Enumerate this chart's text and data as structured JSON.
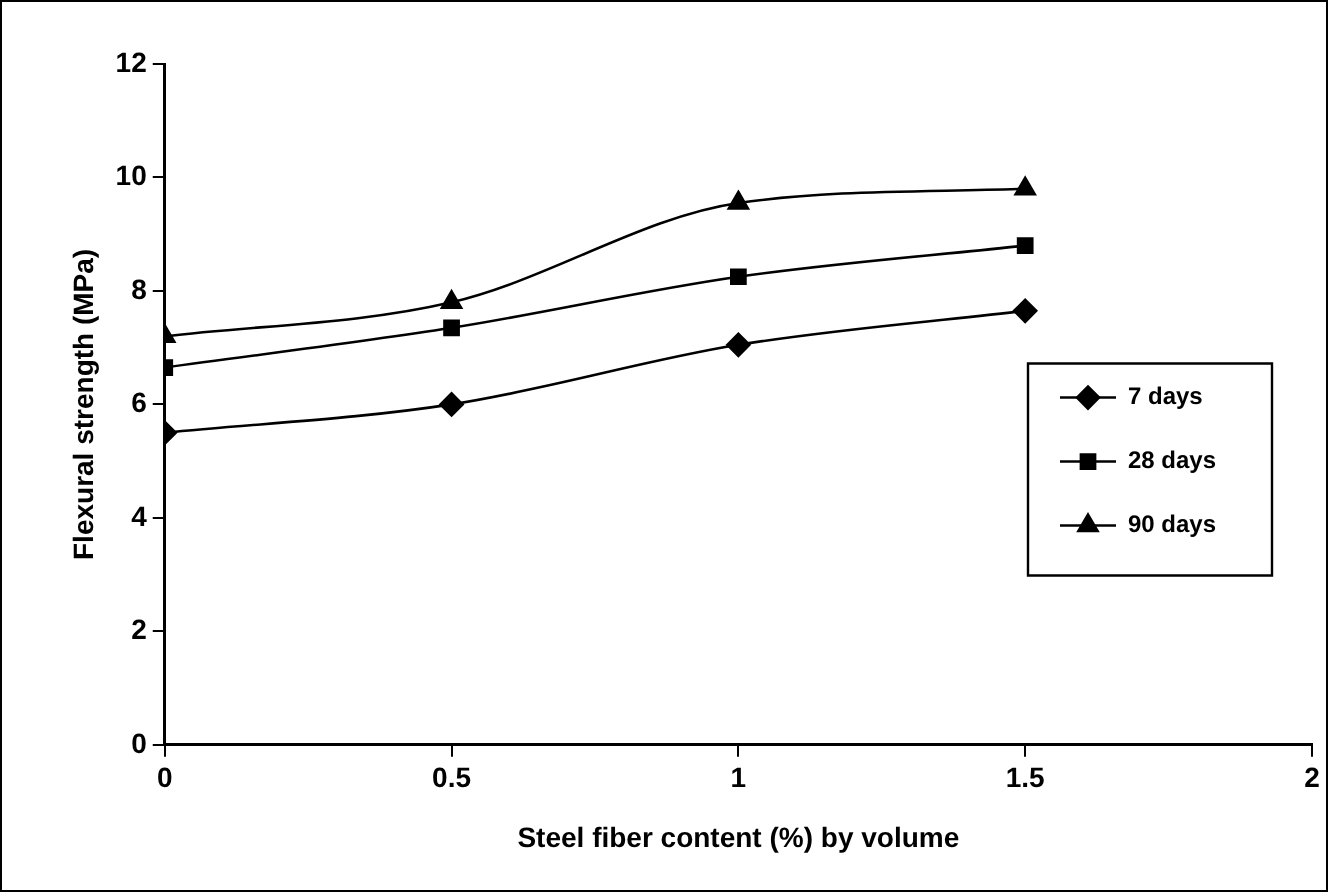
{
  "chart_data": {
    "type": "line",
    "xlabel": "Steel fiber content (%) by volume",
    "ylabel": "Flexural strength (MPa)",
    "x": [
      0,
      0.5,
      1,
      1.5
    ],
    "xlim": [
      0,
      2
    ],
    "xticks": [
      0,
      0.5,
      1,
      1.5,
      2
    ],
    "ylim": [
      0,
      12
    ],
    "yticks": [
      0,
      2,
      4,
      6,
      8,
      10,
      12
    ],
    "grid": false,
    "legend": "right",
    "line_style": "solid",
    "series": [
      {
        "name": "7 days",
        "color": "#000000",
        "marker": "diamond",
        "values": [
          5.5,
          6.0,
          7.05,
          7.65
        ]
      },
      {
        "name": "28 days",
        "color": "#000000",
        "marker": "square",
        "values": [
          6.65,
          7.35,
          8.25,
          8.8
        ]
      },
      {
        "name": "90 days",
        "color": "#000000",
        "marker": "triangle",
        "values": [
          7.2,
          7.8,
          9.55,
          9.8
        ]
      }
    ]
  }
}
